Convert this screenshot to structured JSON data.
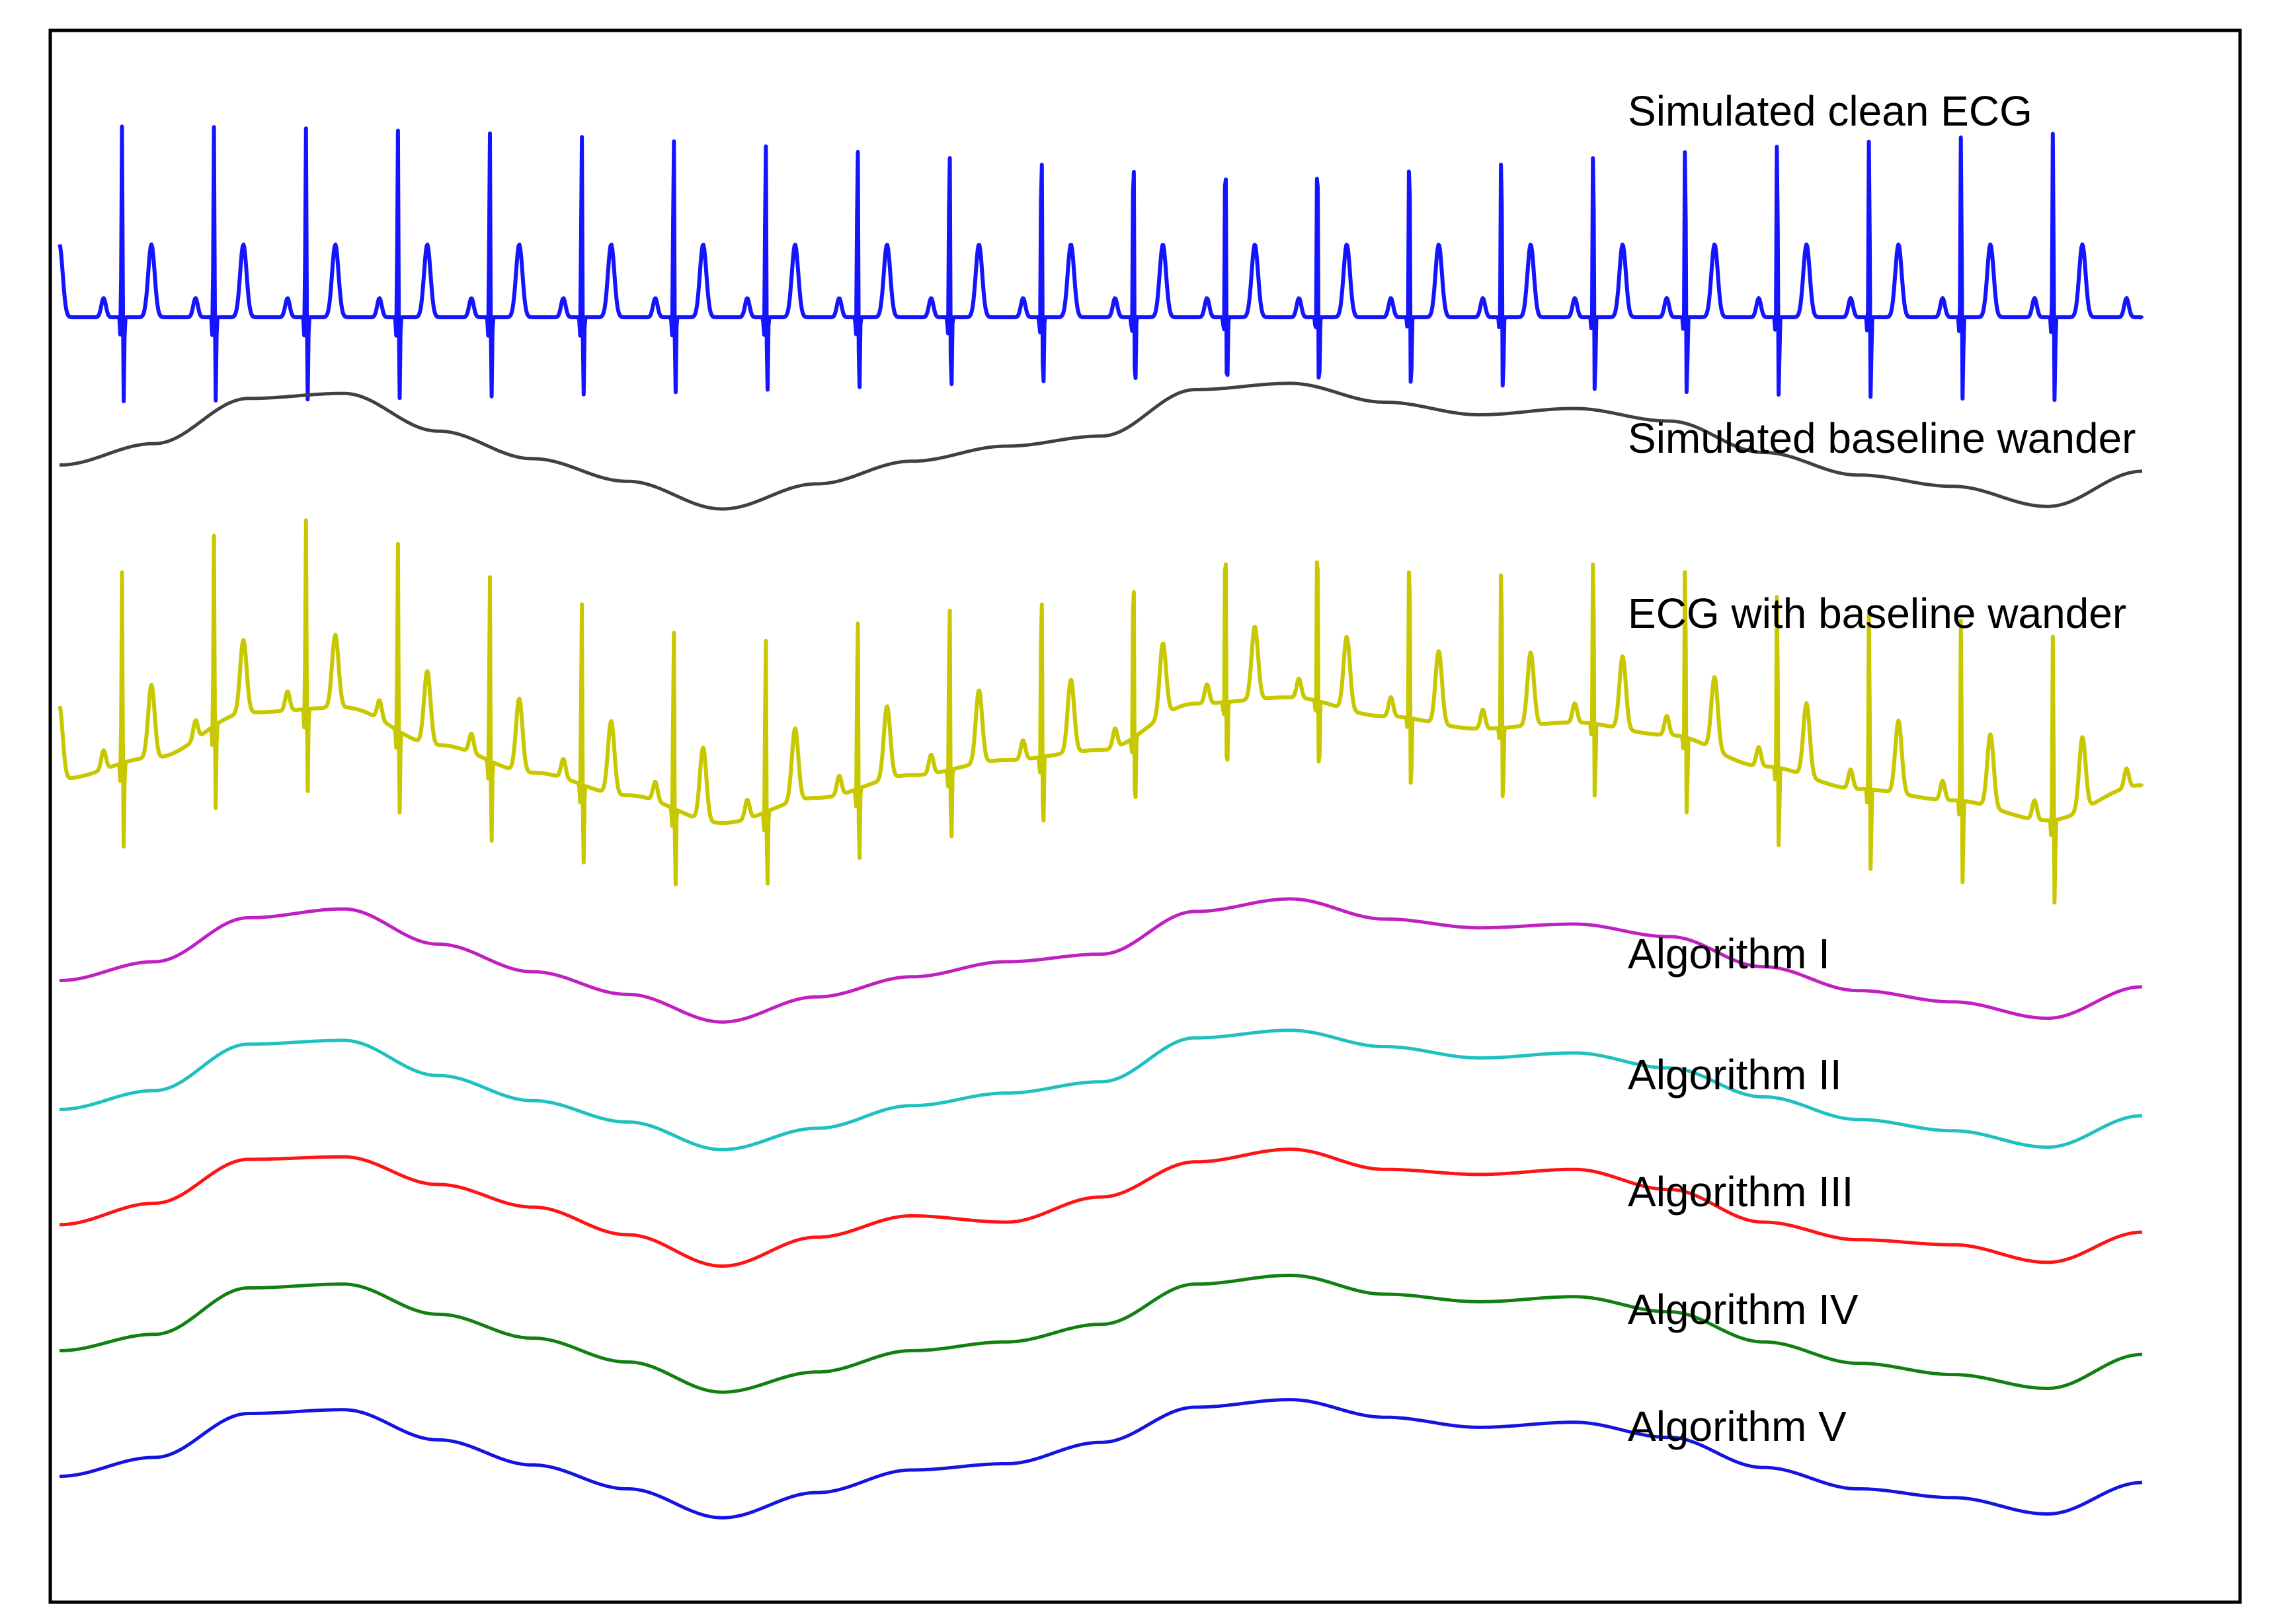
{
  "chart_data": {
    "type": "line",
    "title": "",
    "xlabel": "",
    "ylabel": "",
    "grid": false,
    "legend": "inline labels at right",
    "beats": 23,
    "series": [
      {
        "name": "Simulated clean ECG",
        "kind": "ecg",
        "color": "#1414ff",
        "baseline_offset": 0.0,
        "wander_scale": 0.0,
        "r_peak": 1.0,
        "s_trough": -0.45,
        "t_wave": 0.38
      },
      {
        "name": "Simulated baseline wander",
        "kind": "wander",
        "color": "#404040",
        "y": [
          0.35,
          0.52,
          0.88,
          0.92,
          0.62,
          0.4,
          0.22,
          0.0,
          0.2,
          0.38,
          0.5,
          0.58,
          0.95,
          1.0,
          0.85,
          0.75,
          0.8,
          0.7,
          0.45,
          0.27,
          0.18,
          0.02,
          0.3
        ]
      },
      {
        "name": "ECG with baseline wander",
        "kind": "ecg_plus_wander",
        "color": "#c8c800",
        "r_peak": 1.0,
        "s_trough": -0.45,
        "t_wave": 0.38
      },
      {
        "name": "Algorithm I",
        "kind": "estimate",
        "color": "#c020c0",
        "y": [
          0.35,
          0.5,
          0.85,
          0.92,
          0.64,
          0.42,
          0.24,
          0.02,
          0.22,
          0.38,
          0.5,
          0.56,
          0.9,
          1.0,
          0.84,
          0.77,
          0.8,
          0.7,
          0.46,
          0.27,
          0.18,
          0.05,
          0.3
        ]
      },
      {
        "name": "Algorithm II",
        "kind": "estimate",
        "color": "#20c0c0",
        "y": [
          0.35,
          0.5,
          0.87,
          0.9,
          0.62,
          0.42,
          0.25,
          0.03,
          0.2,
          0.38,
          0.48,
          0.57,
          0.92,
          0.98,
          0.85,
          0.76,
          0.8,
          0.68,
          0.45,
          0.27,
          0.18,
          0.05,
          0.3
        ]
      },
      {
        "name": "Algorithm III",
        "kind": "estimate",
        "color": "#ff1414",
        "y": [
          0.38,
          0.55,
          0.9,
          0.92,
          0.7,
          0.52,
          0.3,
          0.05,
          0.28,
          0.45,
          0.4,
          0.6,
          0.88,
          0.98,
          0.82,
          0.78,
          0.82,
          0.66,
          0.4,
          0.26,
          0.22,
          0.08,
          0.32
        ]
      },
      {
        "name": "Algorithm IV",
        "kind": "estimate",
        "color": "#118011",
        "y": [
          0.35,
          0.48,
          0.85,
          0.88,
          0.64,
          0.45,
          0.26,
          0.02,
          0.18,
          0.35,
          0.42,
          0.56,
          0.88,
          0.95,
          0.8,
          0.74,
          0.78,
          0.66,
          0.42,
          0.25,
          0.16,
          0.05,
          0.32
        ]
      },
      {
        "name": "Algorithm V",
        "kind": "estimate",
        "color": "#1414e0",
        "y": [
          0.35,
          0.5,
          0.85,
          0.88,
          0.64,
          0.44,
          0.25,
          0.02,
          0.22,
          0.4,
          0.45,
          0.62,
          0.9,
          0.96,
          0.82,
          0.74,
          0.78,
          0.66,
          0.42,
          0.25,
          0.18,
          0.05,
          0.3
        ]
      }
    ]
  }
}
